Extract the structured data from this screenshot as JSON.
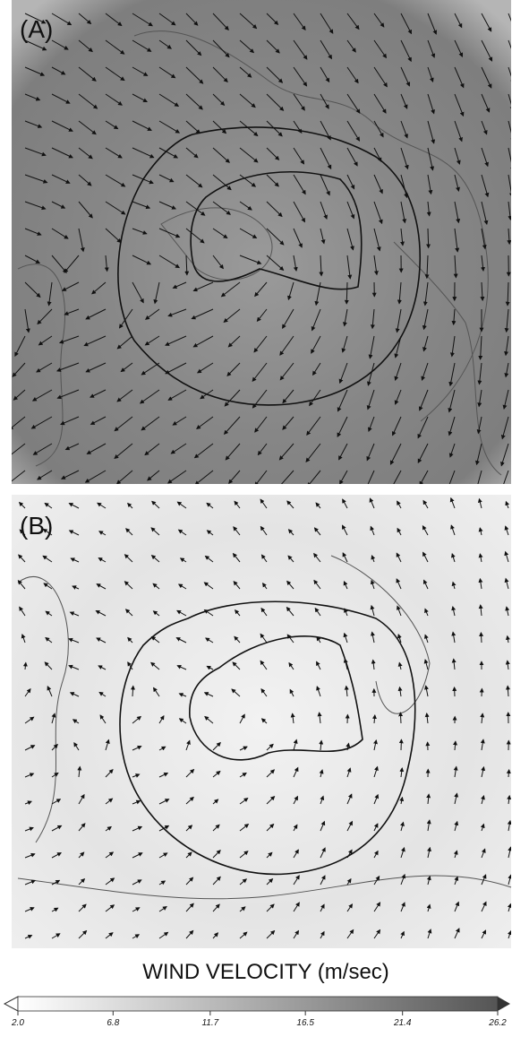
{
  "panels": [
    {
      "label": "(A)"
    },
    {
      "label": "(B)"
    }
  ],
  "colorbar": {
    "title": "WIND VELOCITY (m/sec)",
    "lim": [
      2.0,
      26.2
    ],
    "ticks": [
      {
        "value": 2.0,
        "label": "2.0"
      },
      {
        "value": 6.8,
        "label": "6.8"
      },
      {
        "value": 11.7,
        "label": "11.7"
      },
      {
        "value": 16.5,
        "label": "16.5"
      },
      {
        "value": 21.4,
        "label": "21.4"
      },
      {
        "value": 26.2,
        "label": "26.2"
      }
    ]
  }
}
